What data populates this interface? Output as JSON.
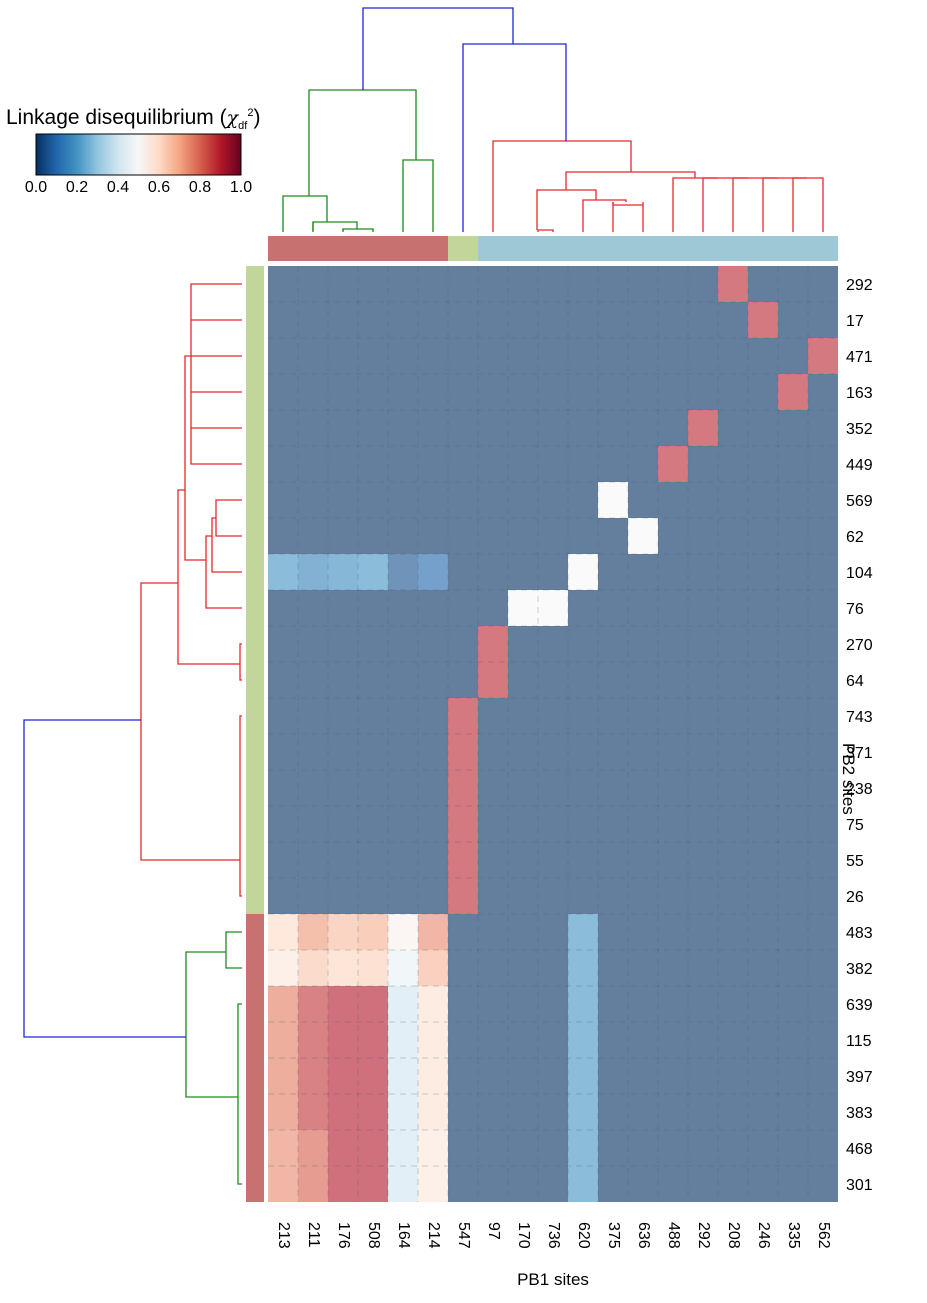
{
  "chart_data": {
    "type": "heatmap",
    "xlabel": "PB1 sites",
    "ylabel": "PB2 sites",
    "colorbar": {
      "title": "Linkage disequilibrium",
      "symbol": "χ",
      "sub": "df",
      "sup": "2",
      "range": [
        0.0,
        1.0
      ],
      "ticks": [
        "0.0",
        "0.2",
        "0.4",
        "0.6",
        "0.8",
        "1.0"
      ],
      "colormap": "RdBu_r"
    },
    "columns": [
      "213",
      "211",
      "176",
      "508",
      "164",
      "214",
      "547",
      "97",
      "170",
      "736",
      "620",
      "375",
      "636",
      "488",
      "292",
      "208",
      "246",
      "335",
      "562"
    ],
    "rows": [
      "292",
      "17",
      "471",
      "163",
      "352",
      "449",
      "569",
      "62",
      "104",
      "76",
      "270",
      "64",
      "743",
      "371",
      "238",
      "75",
      "55",
      "26",
      "483",
      "382",
      "639",
      "115",
      "397",
      "383",
      "468",
      "301"
    ],
    "column_clusters": [
      "red",
      "red",
      "red",
      "red",
      "red",
      "red",
      "green",
      "blue",
      "blue",
      "blue",
      "blue",
      "blue",
      "blue",
      "blue",
      "blue",
      "blue",
      "blue",
      "blue",
      "blue"
    ],
    "row_clusters": [
      "green",
      "green",
      "green",
      "green",
      "green",
      "green",
      "green",
      "green",
      "green",
      "green",
      "green",
      "green",
      "green",
      "green",
      "green",
      "green",
      "green",
      "green",
      "red",
      "red",
      "red",
      "red",
      "red",
      "red",
      "red",
      "red"
    ],
    "cluster_colors": {
      "red": "#c87171",
      "green": "#c2d59a",
      "blue": "#9ec8d6"
    },
    "values": [
      [
        0,
        0,
        0,
        0,
        0,
        0,
        0,
        0,
        0,
        0,
        0,
        0,
        0,
        0,
        0,
        0.88,
        0,
        0,
        0
      ],
      [
        0,
        0,
        0,
        0,
        0,
        0,
        0,
        0,
        0,
        0,
        0,
        0,
        0,
        0,
        0,
        0,
        0.88,
        0,
        0
      ],
      [
        0,
        0,
        0,
        0,
        0,
        0,
        0,
        0,
        0,
        0,
        0,
        0,
        0,
        0,
        0,
        0,
        0,
        0,
        0.88
      ],
      [
        0,
        0,
        0,
        0,
        0,
        0,
        0,
        0,
        0,
        0,
        0,
        0,
        0,
        0,
        0,
        0,
        0,
        0.88,
        0
      ],
      [
        0,
        0,
        0,
        0,
        0,
        0,
        0,
        0,
        0,
        0,
        0,
        0,
        0,
        0,
        0.88,
        0,
        0,
        0,
        0
      ],
      [
        0,
        0,
        0,
        0,
        0,
        0,
        0,
        0,
        0,
        0,
        0,
        0,
        0,
        0.88,
        0,
        0,
        0,
        0,
        0
      ],
      [
        0,
        0,
        0,
        0,
        0,
        0,
        0,
        0,
        0,
        0,
        0,
        0.5,
        0,
        0,
        0,
        0,
        0,
        0,
        0
      ],
      [
        0,
        0,
        0,
        0,
        0,
        0,
        0,
        0,
        0,
        0,
        0,
        0,
        0.5,
        0,
        0,
        0,
        0,
        0,
        0
      ],
      [
        0.2,
        0.16,
        0.18,
        0.2,
        0.06,
        0.1,
        0,
        0,
        0,
        0,
        0.5,
        0,
        0,
        0,
        0,
        0,
        0,
        0,
        0
      ],
      [
        0,
        0,
        0,
        0,
        0,
        0,
        0,
        0,
        0.5,
        0.5,
        0,
        0,
        0,
        0,
        0,
        0,
        0,
        0,
        0
      ],
      [
        0,
        0,
        0,
        0,
        0,
        0,
        0,
        0.88,
        0,
        0,
        0,
        0,
        0,
        0,
        0,
        0,
        0,
        0,
        0
      ],
      [
        0,
        0,
        0,
        0,
        0,
        0,
        0,
        0.88,
        0,
        0,
        0,
        0,
        0,
        0,
        0,
        0,
        0,
        0,
        0
      ],
      [
        0,
        0,
        0,
        0,
        0,
        0,
        0.88,
        0,
        0,
        0,
        0,
        0,
        0,
        0,
        0,
        0,
        0,
        0,
        0
      ],
      [
        0,
        0,
        0,
        0,
        0,
        0,
        0.88,
        0,
        0,
        0,
        0,
        0,
        0,
        0,
        0,
        0,
        0,
        0,
        0
      ],
      [
        0,
        0,
        0,
        0,
        0,
        0,
        0.88,
        0,
        0,
        0,
        0,
        0,
        0,
        0,
        0,
        0,
        0,
        0,
        0
      ],
      [
        0,
        0,
        0,
        0,
        0,
        0,
        0.88,
        0,
        0,
        0,
        0,
        0,
        0,
        0,
        0,
        0,
        0,
        0,
        0
      ],
      [
        0,
        0,
        0,
        0,
        0,
        0,
        0.88,
        0,
        0,
        0,
        0,
        0,
        0,
        0,
        0,
        0,
        0,
        0,
        0
      ],
      [
        0,
        0,
        0,
        0,
        0,
        0,
        0.88,
        0,
        0,
        0,
        0,
        0,
        0,
        0,
        0,
        0,
        0,
        0,
        0
      ],
      [
        0.6,
        0.72,
        0.66,
        0.68,
        0.52,
        0.74,
        0,
        0,
        0,
        0,
        0.2,
        0,
        0,
        0,
        0,
        0,
        0,
        0,
        0
      ],
      [
        0.56,
        0.64,
        0.61,
        0.62,
        0.46,
        0.67,
        0,
        0,
        0,
        0,
        0.2,
        0,
        0,
        0,
        0,
        0,
        0,
        0,
        0
      ],
      [
        0.76,
        0.86,
        0.9,
        0.9,
        0.4,
        0.58,
        0,
        0,
        0,
        0,
        0.2,
        0,
        0,
        0,
        0,
        0,
        0,
        0,
        0
      ],
      [
        0.76,
        0.86,
        0.9,
        0.9,
        0.4,
        0.58,
        0,
        0,
        0,
        0,
        0.2,
        0,
        0,
        0,
        0,
        0,
        0,
        0,
        0
      ],
      [
        0.76,
        0.86,
        0.9,
        0.9,
        0.4,
        0.58,
        0,
        0,
        0,
        0,
        0.2,
        0,
        0,
        0,
        0,
        0,
        0,
        0,
        0
      ],
      [
        0.76,
        0.86,
        0.9,
        0.9,
        0.4,
        0.58,
        0,
        0,
        0,
        0,
        0.2,
        0,
        0,
        0,
        0,
        0,
        0,
        0,
        0
      ],
      [
        0.74,
        0.8,
        0.9,
        0.9,
        0.4,
        0.56,
        0,
        0,
        0,
        0,
        0.2,
        0,
        0,
        0,
        0,
        0,
        0,
        0,
        0
      ],
      [
        0.74,
        0.8,
        0.9,
        0.9,
        0.4,
        0.56,
        0,
        0,
        0,
        0,
        0.2,
        0,
        0,
        0,
        0,
        0,
        0,
        0,
        0
      ]
    ]
  }
}
